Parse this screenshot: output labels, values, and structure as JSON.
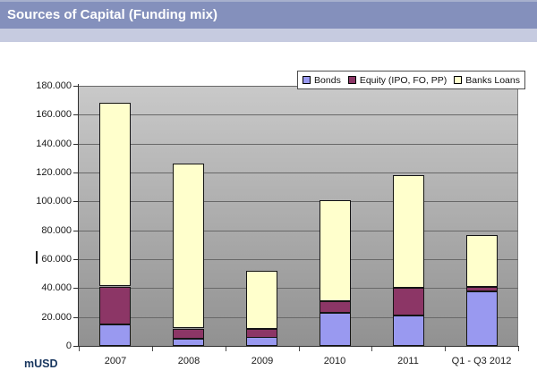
{
  "header": {
    "title": "Sources of Capital (Funding mix)"
  },
  "footer": {
    "unit_label": "mUSD"
  },
  "legend": {
    "entries": [
      "Bonds",
      "Equity (IPO, FO, PP)",
      "Banks Loans"
    ]
  },
  "chart_data": {
    "type": "bar",
    "stacked": true,
    "title": "Sources of Capital (Funding mix)",
    "unit": "mUSD",
    "categories": [
      "2007",
      "2008",
      "2009",
      "2010",
      "2011",
      "Q1 - Q3 2012"
    ],
    "series": [
      {
        "name": "Bonds",
        "color": "#9999f0",
        "values": [
          15000,
          5000,
          6000,
          23000,
          21000,
          38000
        ]
      },
      {
        "name": "Equity (IPO, FO, PP)",
        "color": "#8c3666",
        "values": [
          26000,
          7000,
          6000,
          8000,
          19000,
          3000
        ]
      },
      {
        "name": "Banks Loans",
        "color": "#ffffcc",
        "values": [
          127000,
          114000,
          40000,
          70000,
          78000,
          36000
        ]
      }
    ],
    "totals": [
      168000,
      126000,
      52000,
      101000,
      118000,
      77000
    ],
    "ylim": [
      0,
      180000
    ],
    "ytick_step": 20000,
    "ytick_labels": [
      "0",
      "20.000",
      "40.000",
      "60.000",
      "80.000",
      "100.000",
      "120.000",
      "140.000",
      "160.000",
      "180.000"
    ],
    "xlabel": "",
    "ylabel": "mUSD",
    "grid": true,
    "legend_position": "top-right",
    "wall_background": [
      "#c9c9c9",
      "#919191"
    ]
  }
}
